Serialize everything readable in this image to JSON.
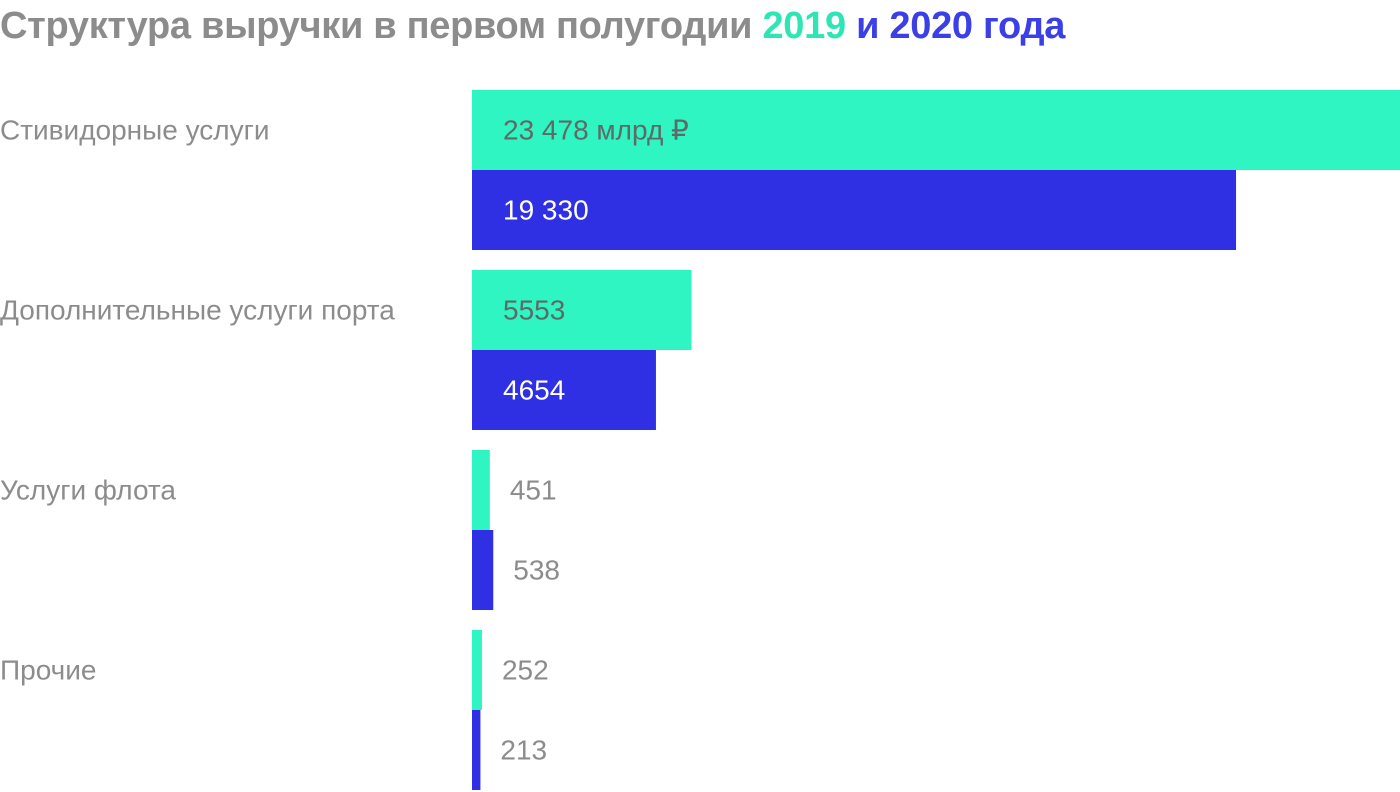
{
  "title": {
    "prefix": "Структура выручки в первом полугодии",
    "year1": "2019",
    "joiner": "и",
    "year2": "2020",
    "suffix": "года"
  },
  "colors": {
    "series_2019": "#2ff5c3",
    "series_2020": "#2f2fe4",
    "muted_text": "#8c8c8c",
    "label_on_mint": "#5e6a66",
    "label_on_blue": "#ffffff"
  },
  "chart_data": {
    "type": "bar",
    "orientation": "horizontal",
    "title": "Структура выручки в первом полугодии 2019 и 2020 года",
    "categories": [
      "Стивидорные услуги",
      "Дополнительные услуги порта",
      "Услуги флота",
      "Прочие"
    ],
    "series": [
      {
        "name": "2019",
        "color": "#2ff5c3",
        "values": [
          23478,
          5553,
          451,
          252
        ],
        "labels": [
          "23 478 млрд ₽",
          "5553",
          "451",
          "252"
        ]
      },
      {
        "name": "2020",
        "color": "#2f2fe4",
        "values": [
          19330,
          4654,
          538,
          213
        ],
        "labels": [
          "19 330",
          "4654",
          "538",
          "213"
        ]
      }
    ],
    "xlim": [
      0,
      23478
    ],
    "grid": false,
    "legend": "title"
  }
}
